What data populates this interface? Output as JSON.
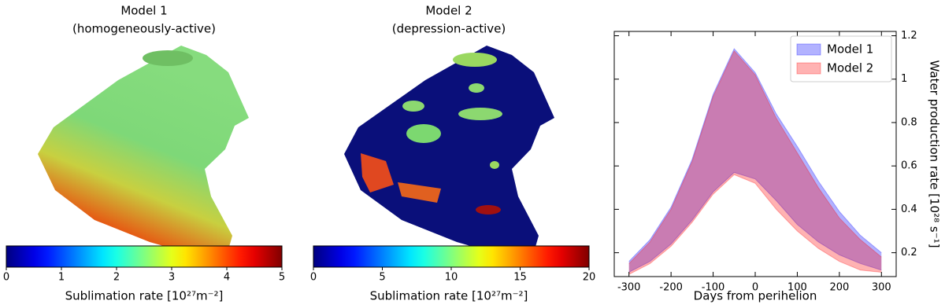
{
  "chart_data": [
    {
      "type": "colorbar",
      "title": [
        "Model 1",
        "(homogeneously-active)"
      ],
      "xlabel": "Sublimation rate [10²⁷m⁻²]",
      "colormap": "jet",
      "xlim": [
        0,
        5
      ],
      "xticks": [
        0,
        1,
        2,
        3,
        4,
        5
      ]
    },
    {
      "type": "colorbar",
      "title": [
        "Model 2",
        "(depression-active)"
      ],
      "xlabel": "Sublimation rate [10²⁷m⁻²]",
      "colormap": "jet",
      "xlim": [
        0,
        20
      ],
      "xticks": [
        0,
        5,
        10,
        15,
        20
      ]
    },
    {
      "type": "band",
      "xlabel": "Days from perihelion",
      "ylabel": "Water production rate [10²⁸ s⁻¹]",
      "x": [
        -300,
        -250,
        -200,
        -150,
        -100,
        -50,
        0,
        50,
        100,
        150,
        200,
        250,
        300
      ],
      "xlim": [
        -335,
        335
      ],
      "xticks": [
        -300,
        -200,
        -100,
        0,
        100,
        200,
        300
      ],
      "ylim": [
        0.09,
        1.22
      ],
      "yticks": [
        0.2,
        0.4,
        0.6,
        0.8,
        1.0,
        1.2
      ],
      "legend": "upper right",
      "series": [
        {
          "name": "Model 1",
          "color": "#0000ff",
          "alpha": 0.3,
          "upper": [
            0.16,
            0.26,
            0.41,
            0.63,
            0.93,
            1.14,
            1.03,
            0.84,
            0.69,
            0.53,
            0.39,
            0.28,
            0.2
          ],
          "lower": [
            0.11,
            0.16,
            0.24,
            0.35,
            0.48,
            0.57,
            0.54,
            0.44,
            0.33,
            0.25,
            0.19,
            0.15,
            0.12
          ]
        },
        {
          "name": "Model 2",
          "color": "#ff0000",
          "alpha": 0.3,
          "upper": [
            0.15,
            0.25,
            0.4,
            0.62,
            0.92,
            1.13,
            1.02,
            0.82,
            0.66,
            0.5,
            0.36,
            0.26,
            0.18
          ],
          "lower": [
            0.1,
            0.15,
            0.23,
            0.34,
            0.47,
            0.56,
            0.52,
            0.4,
            0.3,
            0.22,
            0.16,
            0.12,
            0.11
          ]
        }
      ]
    }
  ]
}
